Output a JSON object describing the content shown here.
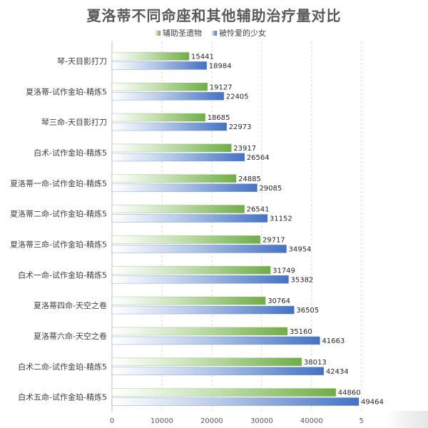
{
  "chart_data": {
    "type": "bar",
    "orientation": "horizontal",
    "title": "夏洛蒂不同命座和其他辅助治疗量对比",
    "xlabel": "",
    "ylabel": "",
    "categories": [
      "琴-天目影打刀",
      "夏洛蒂-试作金珀-精炼5",
      "琴三命-天目影打刀",
      "白术-试作金珀-精炼5",
      "夏洛蒂一命-试作金珀-精炼5",
      "夏洛蒂二命-试作金珀-精炼5",
      "夏洛蒂三命-试作金珀-精炼5",
      "白术一命-试作金珀-精炼5",
      "夏洛蒂四命-天空之卷",
      "夏洛蒂六命-天空之卷",
      "白术二命-试作金珀-精炼5",
      "白术五命-试作金珀-精炼5"
    ],
    "series": [
      {
        "name": "辅助圣遗物",
        "color": "#70AD47",
        "values": [
          15441,
          19127,
          18685,
          23917,
          24885,
          26541,
          29717,
          31749,
          30764,
          35160,
          38013,
          44860
        ]
      },
      {
        "name": "被怜爱的少女",
        "color": "#4472C4",
        "values": [
          18984,
          22405,
          22973,
          26564,
          29085,
          31152,
          34954,
          35382,
          36505,
          41663,
          42434,
          49464
        ]
      }
    ],
    "xlim": [
      0,
      50000
    ],
    "xticks": [
      "0",
      "10000",
      "20000",
      "30000",
      "40000",
      "5"
    ],
    "grid": true,
    "legend_position": "top"
  }
}
